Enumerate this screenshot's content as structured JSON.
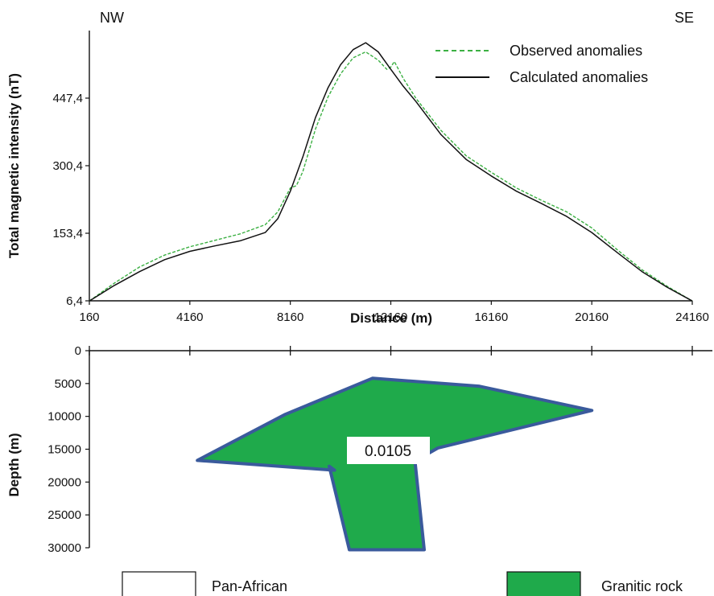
{
  "chart_data": [
    {
      "type": "line",
      "corner_labels": {
        "left": "NW",
        "right": "SE"
      },
      "xlabel": "Distance (m)",
      "ylabel": "Total magnetic intensity (nT)",
      "xticks": [
        160,
        4160,
        8160,
        12160,
        16160,
        20160,
        24160
      ],
      "xtick_labels": [
        "160",
        "4160",
        "8160",
        "12160",
        "16160",
        "20160",
        "24160"
      ],
      "yticks": [
        6.4,
        153.4,
        300.4,
        447.4
      ],
      "ytick_labels": [
        "6,4",
        "153,4",
        "300,4",
        "447,4"
      ],
      "xlim": [
        160,
        24160
      ],
      "ylim": [
        6.4,
        594.4
      ],
      "grid": false,
      "legend_position": "top-right",
      "series": [
        {
          "name": "Observed anomalies",
          "color": "#3cb043",
          "style": "dashed",
          "x": [
            160,
            1160,
            2160,
            3160,
            4160,
            5160,
            6160,
            7160,
            7660,
            8160,
            8400,
            8660,
            9160,
            9660,
            10160,
            10660,
            11160,
            11660,
            12000,
            12160,
            12300,
            12660,
            13160,
            14160,
            15160,
            16160,
            17160,
            18160,
            19160,
            20160,
            21160,
            22160,
            23160,
            24160
          ],
          "y": [
            6,
            45,
            80,
            106,
            124,
            138,
            152,
            172,
            200,
            252,
            257,
            288,
            380,
            450,
            500,
            535,
            548,
            530,
            510,
            515,
            527,
            490,
            447,
            377,
            322,
            286,
            252,
            225,
            200,
            165,
            118,
            74,
            38,
            6
          ]
        },
        {
          "name": "Calculated anomalies",
          "color": "#111111",
          "style": "solid",
          "x": [
            160,
            1160,
            2160,
            3160,
            4160,
            5160,
            6160,
            7160,
            7660,
            8160,
            8660,
            9160,
            9660,
            10160,
            10660,
            11160,
            11660,
            12160,
            12660,
            13160,
            14160,
            15160,
            16160,
            17160,
            18160,
            19160,
            20160,
            21160,
            22160,
            23160,
            24160
          ],
          "y": [
            6,
            40,
            70,
            96,
            114,
            126,
            137,
            155,
            185,
            245,
            320,
            405,
            470,
            520,
            553,
            568,
            548,
            510,
            473,
            440,
            368,
            314,
            278,
            245,
            218,
            190,
            155,
            112,
            70,
            36,
            6
          ]
        }
      ]
    },
    {
      "type": "area",
      "ylabel": "Depth (m)",
      "xlim": [
        160,
        24160
      ],
      "ylim": [
        30000,
        0
      ],
      "yticks": [
        0,
        5000,
        10000,
        15000,
        20000,
        25000,
        30000
      ],
      "ytick_labels": [
        "0",
        "5000",
        "10000",
        "15000",
        "20000",
        "25000",
        "30000"
      ],
      "xticks": [
        160,
        4160,
        8160,
        12160,
        16160,
        20160,
        24160
      ],
      "body": {
        "label": "0.0105",
        "fill": "#1faa4b",
        "stroke": "#3a5a9c",
        "polygon_x": [
          4460,
          7960,
          11430,
          15660,
          20160,
          14040,
          13120,
          13490,
          10510,
          9710,
          9920
        ],
        "polygon_y": [
          16700,
          9700,
          4200,
          5400,
          9100,
          14800,
          16800,
          30300,
          30300,
          17600,
          18200
        ]
      },
      "legend": [
        {
          "label": "Pan-African",
          "fill": "#ffffff"
        },
        {
          "label": "Granitic rock",
          "fill": "#1faa4b"
        }
      ]
    }
  ]
}
